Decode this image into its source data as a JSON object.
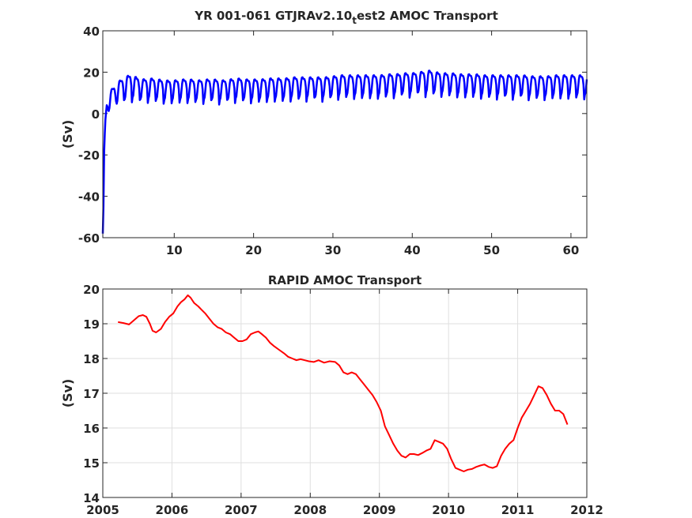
{
  "chart_data": [
    {
      "type": "line",
      "title_main": "YR 001-061 GTJRAv2.10",
      "title_sub": "t",
      "title_tail": "est2 AMOC Transport",
      "xlabel": "",
      "ylabel": "(Sv)",
      "xlim": [
        1,
        62
      ],
      "ylim": [
        -60,
        40
      ],
      "xticks": [
        10,
        20,
        30,
        40,
        50,
        60
      ],
      "yticks": [
        -60,
        -40,
        -20,
        0,
        20,
        40
      ],
      "xtick_labels": [
        "10",
        "20",
        "30",
        "40",
        "50",
        "60"
      ],
      "ytick_labels": [
        "-60",
        "-40",
        "-20",
        "0",
        "20",
        "40"
      ],
      "grid": false,
      "series": [
        {
          "color": "#0000ff",
          "description_note": "monthly model transport with seasonal cycle",
          "x": [
            1.0,
            1.05,
            1.1,
            1.15,
            1.2,
            1.3,
            1.5,
            1.8,
            2.2,
            2.6,
            3.0,
            3.5,
            4.0,
            4.5,
            5.0,
            6.0,
            7.0,
            8.0,
            9.0,
            10.0,
            11.0,
            12.0,
            13.0,
            14.0,
            15.0,
            16.0,
            17.0,
            18.0,
            19.0,
            20.0,
            21.0,
            22.0,
            23.0,
            24.0,
            25.0,
            26.0,
            27.0,
            28.0,
            29.0,
            30.0,
            31.0,
            32.0,
            33.0,
            34.0,
            35.0,
            36.0,
            37.0,
            38.0,
            39.0,
            40.0,
            41.0,
            42.0,
            43.0,
            44.0,
            45.0,
            46.0,
            47.0,
            48.0,
            49.0,
            50.0,
            51.0,
            52.0,
            53.0,
            54.0,
            55.0,
            56.0,
            57.0,
            58.0,
            59.0,
            60.0,
            61.0,
            62.0
          ],
          "mean": [
            -58,
            -55,
            -40,
            -20,
            -15,
            -5,
            3,
            7,
            9,
            10,
            12,
            13,
            14,
            15,
            14,
            13,
            13.5,
            13,
            12.5,
            12.5,
            13,
            13,
            12.5,
            13,
            13,
            12.5,
            13,
            13.5,
            13,
            13,
            13,
            13.5,
            13.5,
            13.5,
            14,
            14,
            14,
            14,
            14,
            14.5,
            15,
            15,
            15,
            15,
            15,
            15,
            15.5,
            15.5,
            16,
            16,
            16.5,
            17,
            16.5,
            16,
            16,
            15.5,
            15.5,
            15.5,
            15,
            15,
            15,
            15,
            15,
            15,
            14.5,
            14.5,
            14.5,
            15,
            15,
            15,
            15,
            15
          ],
          "amplitude": [
            0,
            0,
            0,
            0,
            0,
            1,
            3,
            4,
            4,
            4.5,
            4.5,
            5,
            5,
            5,
            5,
            4.5,
            4.5,
            4.5,
            4.5,
            4.5,
            4.5,
            4.5,
            4.5,
            4.5,
            4.5,
            4.5,
            4.5,
            4.5,
            4.5,
            4.5,
            4.5,
            4.5,
            4.5,
            4.5,
            4.5,
            4.5,
            4.5,
            4.5,
            4.5,
            4.5,
            4.5,
            4.5,
            4.5,
            4.5,
            4.5,
            4.5,
            4.5,
            4.5,
            4.5,
            4.5,
            4.5,
            5,
            4.5,
            4.5,
            4.5,
            4.5,
            4.5,
            4.5,
            4.5,
            4.5,
            4.5,
            4.5,
            4.5,
            4.5,
            4.5,
            4.5,
            4.5,
            4.5,
            4.5,
            4.5,
            4.5,
            4.5
          ]
        }
      ]
    },
    {
      "type": "line",
      "title": "RAPID AMOC Transport",
      "xlabel": "",
      "ylabel": "(Sv)",
      "xlim": [
        2005,
        2012
      ],
      "ylim": [
        14,
        20
      ],
      "xticks": [
        2005,
        2006,
        2007,
        2008,
        2009,
        2010,
        2011,
        2012
      ],
      "yticks": [
        14,
        15,
        16,
        17,
        18,
        19,
        20
      ],
      "xtick_labels": [
        "2005",
        "2006",
        "2007",
        "2008",
        "2009",
        "2010",
        "2011",
        "2012"
      ],
      "ytick_labels": [
        "14",
        "15",
        "16",
        "17",
        "18",
        "19",
        "20"
      ],
      "grid": true,
      "series": [
        {
          "color": "#ff0000",
          "x": [
            2005.22,
            2005.3,
            2005.38,
            2005.45,
            2005.52,
            2005.58,
            2005.63,
            2005.68,
            2005.72,
            2005.77,
            2005.84,
            2005.9,
            2005.96,
            2006.02,
            2006.08,
            2006.13,
            2006.18,
            2006.23,
            2006.27,
            2006.32,
            2006.38,
            2006.43,
            2006.48,
            2006.54,
            2006.6,
            2006.66,
            2006.72,
            2006.78,
            2006.84,
            2006.9,
            2006.96,
            2007.02,
            2007.08,
            2007.14,
            2007.2,
            2007.25,
            2007.3,
            2007.36,
            2007.42,
            2007.48,
            2007.55,
            2007.62,
            2007.68,
            2007.74,
            2007.8,
            2007.86,
            2007.92,
            2007.98,
            2008.05,
            2008.12,
            2008.2,
            2008.28,
            2008.36,
            2008.42,
            2008.48,
            2008.54,
            2008.6,
            2008.66,
            2008.72,
            2008.78,
            2008.84,
            2008.9,
            2008.96,
            2009.02,
            2009.08,
            2009.14,
            2009.2,
            2009.26,
            2009.32,
            2009.38,
            2009.44,
            2009.5,
            2009.56,
            2009.62,
            2009.68,
            2009.74,
            2009.8,
            2009.86,
            2009.92,
            2009.98,
            2010.04,
            2010.1,
            2010.16,
            2010.22,
            2010.28,
            2010.34,
            2010.4,
            2010.46,
            2010.52,
            2010.58,
            2010.64,
            2010.7,
            2010.76,
            2010.82,
            2010.88,
            2010.94,
            2011.0,
            2011.06,
            2011.12,
            2011.18,
            2011.24,
            2011.3,
            2011.36,
            2011.42,
            2011.48,
            2011.54,
            2011.6,
            2011.66,
            2011.72
          ],
          "y": [
            19.05,
            19.02,
            18.98,
            19.1,
            19.22,
            19.25,
            19.2,
            19.0,
            18.8,
            18.75,
            18.85,
            19.05,
            19.2,
            19.3,
            19.5,
            19.62,
            19.7,
            19.82,
            19.75,
            19.6,
            19.5,
            19.4,
            19.3,
            19.15,
            19.0,
            18.9,
            18.85,
            18.75,
            18.7,
            18.6,
            18.5,
            18.5,
            18.55,
            18.7,
            18.75,
            18.78,
            18.7,
            18.6,
            18.45,
            18.35,
            18.25,
            18.15,
            18.05,
            18.0,
            17.95,
            17.98,
            17.95,
            17.92,
            17.9,
            17.95,
            17.88,
            17.92,
            17.9,
            17.8,
            17.6,
            17.55,
            17.6,
            17.55,
            17.4,
            17.25,
            17.1,
            16.95,
            16.75,
            16.5,
            16.05,
            15.8,
            15.55,
            15.35,
            15.2,
            15.15,
            15.25,
            15.25,
            15.22,
            15.28,
            15.35,
            15.4,
            15.65,
            15.6,
            15.55,
            15.4,
            15.1,
            14.85,
            14.8,
            14.75,
            14.8,
            14.82,
            14.88,
            14.92,
            14.95,
            14.88,
            14.85,
            14.9,
            15.2,
            15.4,
            15.55,
            15.65,
            16.0,
            16.3,
            16.5,
            16.7,
            16.95,
            17.2,
            17.15,
            16.95,
            16.7,
            16.5,
            16.5,
            16.4,
            16.1
          ]
        }
      ]
    }
  ]
}
